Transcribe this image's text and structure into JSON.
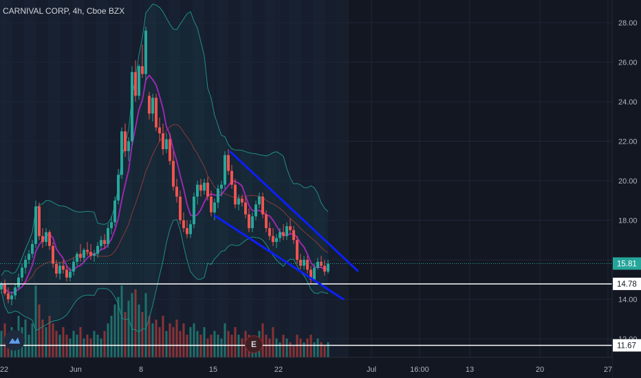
{
  "header": {
    "title": "CARNIVAL CORP, 4h, Cboe BZX"
  },
  "badges": {
    "earnings": "E"
  },
  "icons": {
    "logo": "tradingview-logo-icon",
    "earnings": "earnings-badge"
  },
  "colors": {
    "background": "#131722",
    "up": "#26a69a",
    "down": "#ef5350",
    "bollinger": "#1e8f86",
    "fast_ma": "#9c27b0",
    "slow_ma": "#8b3a3a",
    "trend_lines": "#0c1fff",
    "price_label": "#26a69a"
  },
  "chart_data": {
    "type": "candlestick",
    "title": "CARNIVAL CORP, 4h, Cboe BZX",
    "ylim": [
      11.5,
      29
    ],
    "y_ticks": [
      "28.00",
      "26.00",
      "24.00",
      "22.00",
      "20.00",
      "18.00",
      "16.00",
      "14.00",
      "12.00"
    ],
    "x_ticks": [
      "22",
      "Jun",
      "8",
      "15",
      "22",
      "Jul",
      "16:00",
      "13",
      "20",
      "27"
    ],
    "last_price": "15.81",
    "horizontal_levels": [
      "14.78",
      "11.67"
    ],
    "candles_ohlc": [
      [
        14.5,
        14.9,
        14.3,
        14.8
      ],
      [
        14.8,
        15.0,
        14.2,
        14.3
      ],
      [
        14.3,
        14.6,
        13.8,
        14.0
      ],
      [
        14.0,
        14.4,
        13.7,
        14.2
      ],
      [
        14.2,
        14.8,
        14.0,
        14.6
      ],
      [
        14.6,
        15.3,
        14.5,
        15.1
      ],
      [
        15.1,
        15.8,
        14.9,
        15.6
      ],
      [
        15.6,
        16.2,
        15.3,
        16.0
      ],
      [
        16.0,
        16.5,
        15.8,
        16.3
      ],
      [
        16.3,
        17.0,
        16.1,
        16.8
      ],
      [
        16.8,
        19.0,
        16.6,
        18.7
      ],
      [
        18.7,
        18.9,
        17.0,
        17.2
      ],
      [
        17.2,
        17.6,
        16.6,
        16.9
      ],
      [
        16.9,
        17.6,
        16.7,
        17.4
      ],
      [
        17.4,
        17.5,
        16.5,
        16.7
      ],
      [
        16.7,
        16.9,
        15.6,
        15.8
      ],
      [
        15.8,
        16.0,
        15.1,
        15.3
      ],
      [
        15.3,
        15.9,
        15.0,
        15.7
      ],
      [
        15.7,
        16.0,
        15.3,
        15.5
      ],
      [
        15.5,
        15.7,
        14.9,
        15.1
      ],
      [
        15.1,
        15.6,
        14.9,
        15.4
      ],
      [
        15.4,
        16.1,
        15.2,
        15.9
      ],
      [
        15.9,
        16.4,
        15.7,
        16.3
      ],
      [
        16.3,
        16.8,
        15.9,
        16.1
      ],
      [
        16.1,
        16.6,
        15.9,
        16.5
      ],
      [
        16.5,
        16.9,
        16.2,
        16.4
      ],
      [
        16.4,
        16.8,
        16.0,
        16.2
      ],
      [
        16.2,
        16.5,
        15.9,
        16.3
      ],
      [
        16.3,
        16.9,
        16.1,
        16.7
      ],
      [
        16.7,
        17.2,
        16.5,
        17.0
      ],
      [
        17.0,
        17.3,
        16.6,
        16.8
      ],
      [
        16.8,
        17.8,
        16.6,
        17.6
      ],
      [
        17.6,
        18.2,
        17.3,
        17.9
      ],
      [
        17.9,
        19.2,
        17.7,
        19.0
      ],
      [
        19.0,
        20.6,
        18.8,
        20.3
      ],
      [
        20.3,
        22.7,
        20.1,
        22.5
      ],
      [
        22.5,
        22.9,
        21.2,
        21.5
      ],
      [
        21.5,
        22.2,
        21.0,
        22.0
      ],
      [
        22.0,
        25.8,
        21.8,
        25.5
      ],
      [
        25.5,
        26.1,
        24.0,
        24.3
      ],
      [
        24.3,
        25.9,
        24.1,
        25.8
      ],
      [
        25.8,
        26.9,
        25.2,
        25.4
      ],
      [
        25.4,
        27.8,
        25.1,
        27.6
      ],
      [
        24.3,
        24.5,
        23.1,
        23.4
      ],
      [
        23.4,
        24.4,
        23.0,
        24.2
      ],
      [
        24.2,
        24.4,
        22.5,
        22.7
      ],
      [
        22.7,
        23.2,
        22.0,
        22.4
      ],
      [
        22.4,
        22.9,
        21.3,
        21.6
      ],
      [
        21.6,
        22.4,
        21.4,
        22.1
      ],
      [
        22.1,
        22.4,
        20.8,
        21.0
      ],
      [
        21.0,
        21.5,
        19.5,
        19.7
      ],
      [
        19.7,
        20.1,
        18.9,
        19.2
      ],
      [
        19.2,
        19.5,
        17.8,
        18.0
      ],
      [
        18.0,
        18.4,
        17.4,
        17.6
      ],
      [
        17.6,
        18.0,
        17.1,
        17.3
      ],
      [
        17.3,
        18.0,
        17.1,
        17.8
      ],
      [
        17.8,
        19.4,
        17.6,
        19.2
      ],
      [
        19.2,
        20.0,
        18.8,
        19.8
      ],
      [
        19.8,
        20.1,
        19.2,
        19.5
      ],
      [
        19.5,
        20.1,
        19.3,
        19.9
      ],
      [
        19.9,
        20.2,
        19.0,
        19.2
      ],
      [
        19.2,
        19.5,
        18.2,
        18.4
      ],
      [
        18.4,
        19.1,
        18.0,
        18.9
      ],
      [
        18.9,
        19.8,
        18.6,
        19.6
      ],
      [
        19.6,
        20.0,
        19.2,
        19.8
      ],
      [
        19.8,
        21.5,
        19.6,
        21.3
      ],
      [
        21.3,
        21.6,
        20.3,
        20.5
      ],
      [
        20.5,
        20.8,
        19.6,
        19.8
      ],
      [
        19.8,
        20.1,
        18.6,
        18.8
      ],
      [
        18.8,
        19.3,
        18.5,
        19.1
      ],
      [
        19.1,
        19.3,
        18.7,
        18.9
      ],
      [
        18.9,
        19.2,
        18.1,
        18.3
      ],
      [
        18.3,
        18.6,
        17.4,
        17.6
      ],
      [
        17.6,
        18.4,
        17.4,
        18.2
      ],
      [
        18.2,
        19.0,
        18.0,
        18.8
      ],
      [
        18.8,
        19.4,
        18.6,
        19.2
      ],
      [
        19.2,
        19.4,
        18.1,
        18.3
      ],
      [
        18.3,
        18.5,
        17.4,
        17.6
      ],
      [
        17.6,
        17.9,
        17.0,
        17.2
      ],
      [
        17.2,
        17.6,
        16.7,
        16.9
      ],
      [
        16.9,
        17.3,
        16.6,
        17.1
      ],
      [
        17.1,
        17.6,
        16.9,
        17.4
      ],
      [
        17.4,
        17.8,
        17.0,
        17.2
      ],
      [
        17.2,
        17.9,
        17.0,
        17.7
      ],
      [
        17.7,
        18.1,
        17.3,
        17.5
      ],
      [
        17.5,
        17.7,
        16.8,
        17.0
      ],
      [
        17.0,
        17.2,
        15.8,
        16.0
      ],
      [
        16.0,
        16.3,
        15.5,
        15.7
      ],
      [
        15.7,
        16.2,
        15.5,
        16.0
      ],
      [
        16.0,
        16.2,
        15.3,
        15.5
      ],
      [
        15.5,
        15.7,
        14.8,
        15.0
      ],
      [
        15.0,
        15.8,
        14.9,
        15.6
      ],
      [
        15.6,
        16.1,
        15.5,
        15.9
      ],
      [
        15.9,
        16.2,
        15.6,
        15.7
      ],
      [
        15.7,
        16.0,
        15.2,
        15.4
      ],
      [
        15.4,
        16.0,
        15.3,
        15.8
      ]
    ],
    "volume_rel": [
      0.35,
      0.45,
      0.3,
      0.4,
      0.25,
      0.55,
      0.4,
      0.5,
      0.3,
      0.45,
      0.95,
      0.7,
      0.5,
      0.4,
      0.55,
      0.45,
      0.35,
      0.3,
      0.4,
      0.3,
      0.25,
      0.35,
      0.3,
      0.4,
      0.25,
      0.3,
      0.25,
      0.35,
      0.3,
      0.25,
      0.35,
      0.45,
      0.55,
      0.7,
      0.8,
      0.95,
      0.6,
      0.75,
      0.85,
      0.9,
      0.7,
      0.6,
      0.85,
      0.55,
      0.45,
      0.5,
      0.4,
      0.55,
      0.35,
      0.45,
      0.4,
      0.5,
      0.35,
      0.45,
      0.3,
      0.4,
      0.45,
      0.35,
      0.3,
      0.4,
      0.25,
      0.3,
      0.35,
      0.3,
      0.25,
      0.45,
      0.35,
      0.3,
      0.4,
      0.3,
      0.25,
      0.35,
      0.3,
      0.25,
      0.2,
      0.35,
      0.45,
      0.3,
      0.25,
      0.4,
      0.25,
      0.2,
      0.3,
      0.25,
      0.2,
      0.15,
      0.3,
      0.25,
      0.2,
      0.25,
      0.3,
      0.2,
      0.25,
      0.2,
      0.15,
      0.2
    ]
  }
}
